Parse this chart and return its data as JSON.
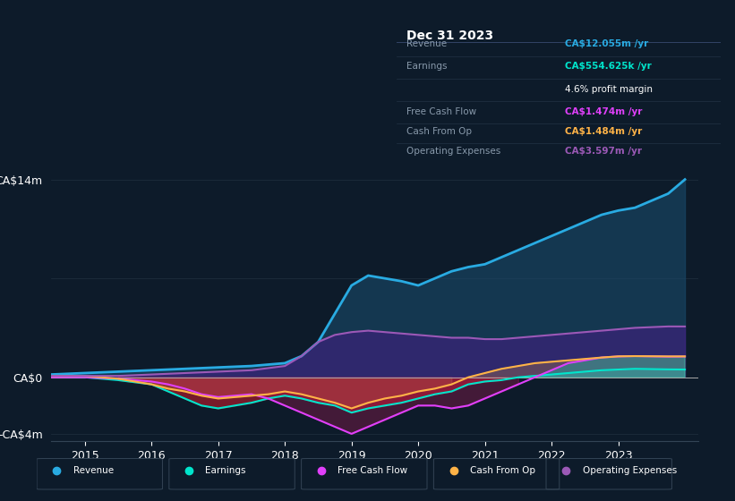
{
  "background_color": "#0d1b2a",
  "plot_bg_color": "#0d1b2a",
  "title_box": {
    "date": "Dec 31 2023",
    "revenue": "CA$12.055m /yr",
    "earnings": "CA$554.625k /yr",
    "profit_margin": "4.6% profit margin",
    "free_cash_flow": "CA$1.474m /yr",
    "cash_from_op": "CA$1.484m /yr",
    "operating_expenses": "CA$3.597m /yr"
  },
  "ylabel_top": "CA$14m",
  "ylabel_zero": "CA$0",
  "ylabel_bottom": "-CA$4m",
  "xlim": [
    2014.5,
    2024.2
  ],
  "ylim": [
    -4.5,
    15.0
  ],
  "xticks": [
    2015,
    2016,
    2017,
    2018,
    2019,
    2020,
    2021,
    2022,
    2023
  ],
  "colors": {
    "revenue": "#29abe2",
    "earnings": "#00e5cc",
    "free_cash_flow": "#e040fb",
    "cash_from_op": "#ffb347",
    "operating_expenses": "#9b59b6",
    "revenue_fill": "#1a4a6b",
    "earnings_fill_pos": "#00e5cc",
    "earnings_fill_neg": "#8b1a2a",
    "free_cash_flow_fill": "#c2185b",
    "cash_from_op_fill": "#c68642",
    "operating_expenses_fill": "#4a1a8a"
  },
  "revenue": {
    "x": [
      2014.5,
      2015.0,
      2015.5,
      2016.0,
      2016.5,
      2017.0,
      2017.5,
      2018.0,
      2018.25,
      2018.5,
      2018.75,
      2019.0,
      2019.25,
      2019.5,
      2019.75,
      2020.0,
      2020.25,
      2020.5,
      2020.75,
      2021.0,
      2021.25,
      2021.5,
      2021.75,
      2022.0,
      2022.25,
      2022.5,
      2022.75,
      2023.0,
      2023.25,
      2023.5,
      2023.75,
      2024.0
    ],
    "y": [
      0.2,
      0.3,
      0.4,
      0.5,
      0.6,
      0.7,
      0.8,
      1.0,
      1.5,
      2.5,
      4.5,
      6.5,
      7.2,
      7.0,
      6.8,
      6.5,
      7.0,
      7.5,
      7.8,
      8.0,
      8.5,
      9.0,
      9.5,
      10.0,
      10.5,
      11.0,
      11.5,
      11.8,
      12.0,
      12.5,
      13.0,
      14.0
    ]
  },
  "earnings": {
    "x": [
      2014.5,
      2015.0,
      2015.5,
      2016.0,
      2016.25,
      2016.5,
      2016.75,
      2017.0,
      2017.25,
      2017.5,
      2017.75,
      2018.0,
      2018.25,
      2018.5,
      2018.75,
      2019.0,
      2019.25,
      2019.5,
      2019.75,
      2020.0,
      2020.25,
      2020.5,
      2020.75,
      2021.0,
      2021.25,
      2021.5,
      2021.75,
      2022.0,
      2022.25,
      2022.5,
      2022.75,
      2023.0,
      2023.25,
      2023.5,
      2023.75,
      2024.0
    ],
    "y": [
      0.05,
      0.0,
      -0.2,
      -0.5,
      -1.0,
      -1.5,
      -2.0,
      -2.2,
      -2.0,
      -1.8,
      -1.5,
      -1.3,
      -1.5,
      -1.8,
      -2.0,
      -2.5,
      -2.2,
      -2.0,
      -1.8,
      -1.5,
      -1.2,
      -1.0,
      -0.5,
      -0.3,
      -0.2,
      0.0,
      0.1,
      0.2,
      0.3,
      0.4,
      0.5,
      0.55,
      0.6,
      0.58,
      0.56,
      0.55
    ]
  },
  "free_cash_flow": {
    "x": [
      2014.5,
      2015.0,
      2015.5,
      2016.0,
      2016.25,
      2016.5,
      2016.75,
      2017.0,
      2017.25,
      2017.5,
      2017.75,
      2018.0,
      2018.25,
      2018.5,
      2018.75,
      2019.0,
      2019.25,
      2019.5,
      2019.75,
      2020.0,
      2020.25,
      2020.5,
      2020.75,
      2021.0,
      2021.25,
      2021.5,
      2021.75,
      2022.0,
      2022.25,
      2022.5,
      2022.75,
      2023.0,
      2023.25,
      2023.5,
      2023.75,
      2024.0
    ],
    "y": [
      0.0,
      0.0,
      -0.1,
      -0.3,
      -0.5,
      -0.8,
      -1.2,
      -1.4,
      -1.3,
      -1.2,
      -1.5,
      -2.0,
      -2.5,
      -3.0,
      -3.5,
      -4.0,
      -3.5,
      -3.0,
      -2.5,
      -2.0,
      -2.0,
      -2.2,
      -2.0,
      -1.5,
      -1.0,
      -0.5,
      0.0,
      0.5,
      1.0,
      1.2,
      1.4,
      1.474,
      1.5,
      1.48,
      1.46,
      1.47
    ]
  },
  "cash_from_op": {
    "x": [
      2014.5,
      2015.0,
      2015.5,
      2016.0,
      2016.25,
      2016.5,
      2016.75,
      2017.0,
      2017.25,
      2017.5,
      2017.75,
      2018.0,
      2018.25,
      2018.5,
      2018.75,
      2019.0,
      2019.25,
      2019.5,
      2019.75,
      2020.0,
      2020.25,
      2020.5,
      2020.75,
      2021.0,
      2021.25,
      2021.5,
      2021.75,
      2022.0,
      2022.25,
      2022.5,
      2022.75,
      2023.0,
      2023.25,
      2023.5,
      2023.75,
      2024.0
    ],
    "y": [
      0.1,
      0.1,
      -0.1,
      -0.5,
      -0.8,
      -1.0,
      -1.3,
      -1.5,
      -1.4,
      -1.3,
      -1.2,
      -1.0,
      -1.2,
      -1.5,
      -1.8,
      -2.2,
      -1.8,
      -1.5,
      -1.3,
      -1.0,
      -0.8,
      -0.5,
      0.0,
      0.3,
      0.6,
      0.8,
      1.0,
      1.1,
      1.2,
      1.3,
      1.4,
      1.484,
      1.5,
      1.49,
      1.48,
      1.48
    ]
  },
  "operating_expenses": {
    "x": [
      2014.5,
      2015.0,
      2015.5,
      2016.0,
      2016.5,
      2017.0,
      2017.5,
      2018.0,
      2018.25,
      2018.5,
      2018.75,
      2019.0,
      2019.25,
      2019.5,
      2019.75,
      2020.0,
      2020.25,
      2020.5,
      2020.75,
      2021.0,
      2021.25,
      2021.5,
      2021.75,
      2022.0,
      2022.25,
      2022.5,
      2022.75,
      2023.0,
      2023.25,
      2023.5,
      2023.75,
      2024.0
    ],
    "y": [
      0.1,
      0.1,
      0.1,
      0.2,
      0.3,
      0.4,
      0.5,
      0.8,
      1.5,
      2.5,
      3.0,
      3.2,
      3.3,
      3.2,
      3.1,
      3.0,
      2.9,
      2.8,
      2.8,
      2.7,
      2.7,
      2.8,
      2.9,
      3.0,
      3.1,
      3.2,
      3.3,
      3.4,
      3.5,
      3.55,
      3.6,
      3.597
    ]
  },
  "legend": [
    {
      "label": "Revenue",
      "color": "#29abe2"
    },
    {
      "label": "Earnings",
      "color": "#00e5cc"
    },
    {
      "label": "Free Cash Flow",
      "color": "#e040fb"
    },
    {
      "label": "Cash From Op",
      "color": "#ffb347"
    },
    {
      "label": "Operating Expenses",
      "color": "#9b59b6"
    }
  ]
}
